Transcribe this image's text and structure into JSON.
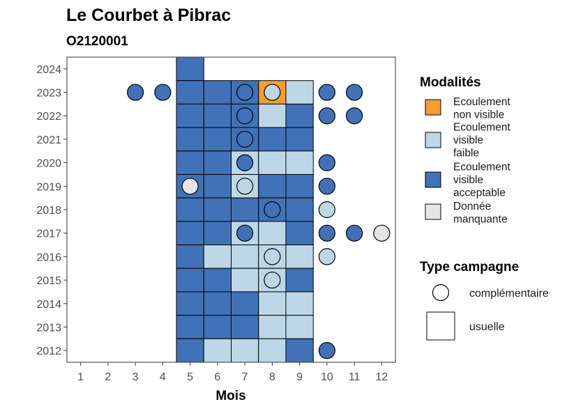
{
  "chart_data": {
    "type": "heatmap",
    "title": "Le Courbet à Pibrac",
    "subtitle": "O2120001",
    "xlabel": "Mois",
    "ylabel": "",
    "x_ticks": [
      "1",
      "2",
      "3",
      "4",
      "5",
      "6",
      "7",
      "8",
      "9",
      "10",
      "11",
      "12"
    ],
    "y_ticks": [
      "2012",
      "2013",
      "2014",
      "2015",
      "2016",
      "2017",
      "2018",
      "2019",
      "2020",
      "2021",
      "2022",
      "2023",
      "2024"
    ],
    "xlim": [
      0.5,
      12.5
    ],
    "ylim": [
      2011.5,
      2024.5
    ],
    "modalites": [
      {
        "key": "nv",
        "label": "Ecoulement non visible",
        "lines": [
          "Ecoulement",
          "non visible"
        ],
        "color": "#F79C32"
      },
      {
        "key": "vf",
        "label": "Ecoulement visible faible",
        "lines": [
          "Ecoulement",
          "visible",
          "faible"
        ],
        "color": "#BDD7E7"
      },
      {
        "key": "va",
        "label": "Ecoulement visible acceptable",
        "lines": [
          "Ecoulement",
          "visible",
          "acceptable"
        ],
        "color": "#4172B8"
      },
      {
        "key": "dm",
        "label": "Donnée manquante",
        "lines": [
          "Donnée",
          "manquante"
        ],
        "color": "#E6E6E6"
      }
    ],
    "campagnes": [
      {
        "key": "complementaire",
        "label": "complémentaire",
        "shape": "circle"
      },
      {
        "key": "usuelle",
        "label": "usuelle",
        "shape": "square"
      }
    ],
    "legend_titles": {
      "modalites": "Modalités",
      "campagne": "Type campagne"
    },
    "legend_position": "right",
    "grid": false,
    "points": [
      {
        "year": 2024,
        "month": 5,
        "mod": "va",
        "type": "usuelle"
      },
      {
        "year": 2023,
        "month": 3,
        "mod": "va",
        "type": "complementaire"
      },
      {
        "year": 2023,
        "month": 4,
        "mod": "va",
        "type": "complementaire"
      },
      {
        "year": 2023,
        "month": 5,
        "mod": "va",
        "type": "usuelle"
      },
      {
        "year": 2023,
        "month": 6,
        "mod": "va",
        "type": "usuelle"
      },
      {
        "year": 2023,
        "month": 7,
        "mod": "va",
        "type": "usuelle"
      },
      {
        "year": 2023,
        "month": 7,
        "mod": "va",
        "type": "complementaire"
      },
      {
        "year": 2023,
        "month": 8,
        "mod": "nv",
        "type": "usuelle"
      },
      {
        "year": 2023,
        "month": 8,
        "mod": "vf",
        "type": "complementaire"
      },
      {
        "year": 2023,
        "month": 9,
        "mod": "vf",
        "type": "usuelle"
      },
      {
        "year": 2023,
        "month": 10,
        "mod": "va",
        "type": "complementaire"
      },
      {
        "year": 2023,
        "month": 11,
        "mod": "va",
        "type": "complementaire"
      },
      {
        "year": 2022,
        "month": 5,
        "mod": "va",
        "type": "usuelle"
      },
      {
        "year": 2022,
        "month": 6,
        "mod": "va",
        "type": "usuelle"
      },
      {
        "year": 2022,
        "month": 7,
        "mod": "va",
        "type": "usuelle"
      },
      {
        "year": 2022,
        "month": 7,
        "mod": "va",
        "type": "complementaire"
      },
      {
        "year": 2022,
        "month": 8,
        "mod": "vf",
        "type": "usuelle"
      },
      {
        "year": 2022,
        "month": 9,
        "mod": "va",
        "type": "usuelle"
      },
      {
        "year": 2022,
        "month": 10,
        "mod": "va",
        "type": "complementaire"
      },
      {
        "year": 2022,
        "month": 11,
        "mod": "va",
        "type": "complementaire"
      },
      {
        "year": 2021,
        "month": 5,
        "mod": "va",
        "type": "usuelle"
      },
      {
        "year": 2021,
        "month": 6,
        "mod": "va",
        "type": "usuelle"
      },
      {
        "year": 2021,
        "month": 7,
        "mod": "va",
        "type": "usuelle"
      },
      {
        "year": 2021,
        "month": 7,
        "mod": "va",
        "type": "complementaire"
      },
      {
        "year": 2021,
        "month": 8,
        "mod": "va",
        "type": "usuelle"
      },
      {
        "year": 2021,
        "month": 9,
        "mod": "va",
        "type": "usuelle"
      },
      {
        "year": 2020,
        "month": 5,
        "mod": "va",
        "type": "usuelle"
      },
      {
        "year": 2020,
        "month": 6,
        "mod": "va",
        "type": "usuelle"
      },
      {
        "year": 2020,
        "month": 7,
        "mod": "vf",
        "type": "usuelle"
      },
      {
        "year": 2020,
        "month": 7,
        "mod": "va",
        "type": "complementaire"
      },
      {
        "year": 2020,
        "month": 8,
        "mod": "vf",
        "type": "usuelle"
      },
      {
        "year": 2020,
        "month": 9,
        "mod": "vf",
        "type": "usuelle"
      },
      {
        "year": 2020,
        "month": 10,
        "mod": "va",
        "type": "complementaire"
      },
      {
        "year": 2019,
        "month": 5,
        "mod": "va",
        "type": "usuelle"
      },
      {
        "year": 2019,
        "month": 5,
        "mod": "dm",
        "type": "complementaire"
      },
      {
        "year": 2019,
        "month": 6,
        "mod": "va",
        "type": "usuelle"
      },
      {
        "year": 2019,
        "month": 7,
        "mod": "vf",
        "type": "usuelle"
      },
      {
        "year": 2019,
        "month": 7,
        "mod": "vf",
        "type": "complementaire"
      },
      {
        "year": 2019,
        "month": 8,
        "mod": "va",
        "type": "usuelle"
      },
      {
        "year": 2019,
        "month": 9,
        "mod": "va",
        "type": "usuelle"
      },
      {
        "year": 2019,
        "month": 10,
        "mod": "va",
        "type": "complementaire"
      },
      {
        "year": 2018,
        "month": 5,
        "mod": "va",
        "type": "usuelle"
      },
      {
        "year": 2018,
        "month": 6,
        "mod": "va",
        "type": "usuelle"
      },
      {
        "year": 2018,
        "month": 7,
        "mod": "va",
        "type": "usuelle"
      },
      {
        "year": 2018,
        "month": 8,
        "mod": "va",
        "type": "usuelle"
      },
      {
        "year": 2018,
        "month": 8,
        "mod": "va",
        "type": "complementaire"
      },
      {
        "year": 2018,
        "month": 9,
        "mod": "va",
        "type": "usuelle"
      },
      {
        "year": 2018,
        "month": 10,
        "mod": "vf",
        "type": "complementaire"
      },
      {
        "year": 2017,
        "month": 5,
        "mod": "va",
        "type": "usuelle"
      },
      {
        "year": 2017,
        "month": 6,
        "mod": "va",
        "type": "usuelle"
      },
      {
        "year": 2017,
        "month": 7,
        "mod": "vf",
        "type": "usuelle"
      },
      {
        "year": 2017,
        "month": 7,
        "mod": "va",
        "type": "complementaire"
      },
      {
        "year": 2017,
        "month": 8,
        "mod": "vf",
        "type": "usuelle"
      },
      {
        "year": 2017,
        "month": 9,
        "mod": "va",
        "type": "usuelle"
      },
      {
        "year": 2017,
        "month": 10,
        "mod": "va",
        "type": "complementaire"
      },
      {
        "year": 2017,
        "month": 11,
        "mod": "va",
        "type": "complementaire"
      },
      {
        "year": 2017,
        "month": 12,
        "mod": "dm",
        "type": "complementaire"
      },
      {
        "year": 2016,
        "month": 5,
        "mod": "va",
        "type": "usuelle"
      },
      {
        "year": 2016,
        "month": 6,
        "mod": "vf",
        "type": "usuelle"
      },
      {
        "year": 2016,
        "month": 7,
        "mod": "vf",
        "type": "usuelle"
      },
      {
        "year": 2016,
        "month": 8,
        "mod": "vf",
        "type": "usuelle"
      },
      {
        "year": 2016,
        "month": 8,
        "mod": "vf",
        "type": "complementaire"
      },
      {
        "year": 2016,
        "month": 9,
        "mod": "vf",
        "type": "usuelle"
      },
      {
        "year": 2016,
        "month": 10,
        "mod": "vf",
        "type": "complementaire"
      },
      {
        "year": 2015,
        "month": 5,
        "mod": "va",
        "type": "usuelle"
      },
      {
        "year": 2015,
        "month": 6,
        "mod": "va",
        "type": "usuelle"
      },
      {
        "year": 2015,
        "month": 7,
        "mod": "vf",
        "type": "usuelle"
      },
      {
        "year": 2015,
        "month": 8,
        "mod": "vf",
        "type": "usuelle"
      },
      {
        "year": 2015,
        "month": 8,
        "mod": "vf",
        "type": "complementaire"
      },
      {
        "year": 2015,
        "month": 9,
        "mod": "va",
        "type": "usuelle"
      },
      {
        "year": 2014,
        "month": 5,
        "mod": "va",
        "type": "usuelle"
      },
      {
        "year": 2014,
        "month": 6,
        "mod": "va",
        "type": "usuelle"
      },
      {
        "year": 2014,
        "month": 7,
        "mod": "va",
        "type": "usuelle"
      },
      {
        "year": 2014,
        "month": 8,
        "mod": "vf",
        "type": "usuelle"
      },
      {
        "year": 2014,
        "month": 9,
        "mod": "vf",
        "type": "usuelle"
      },
      {
        "year": 2013,
        "month": 5,
        "mod": "va",
        "type": "usuelle"
      },
      {
        "year": 2013,
        "month": 6,
        "mod": "va",
        "type": "usuelle"
      },
      {
        "year": 2013,
        "month": 7,
        "mod": "va",
        "type": "usuelle"
      },
      {
        "year": 2013,
        "month": 8,
        "mod": "vf",
        "type": "usuelle"
      },
      {
        "year": 2013,
        "month": 9,
        "mod": "vf",
        "type": "usuelle"
      },
      {
        "year": 2012,
        "month": 5,
        "mod": "va",
        "type": "usuelle"
      },
      {
        "year": 2012,
        "month": 6,
        "mod": "vf",
        "type": "usuelle"
      },
      {
        "year": 2012,
        "month": 7,
        "mod": "vf",
        "type": "usuelle"
      },
      {
        "year": 2012,
        "month": 8,
        "mod": "vf",
        "type": "usuelle"
      },
      {
        "year": 2012,
        "month": 9,
        "mod": "va",
        "type": "usuelle"
      },
      {
        "year": 2012,
        "month": 10,
        "mod": "va",
        "type": "complementaire"
      }
    ]
  }
}
